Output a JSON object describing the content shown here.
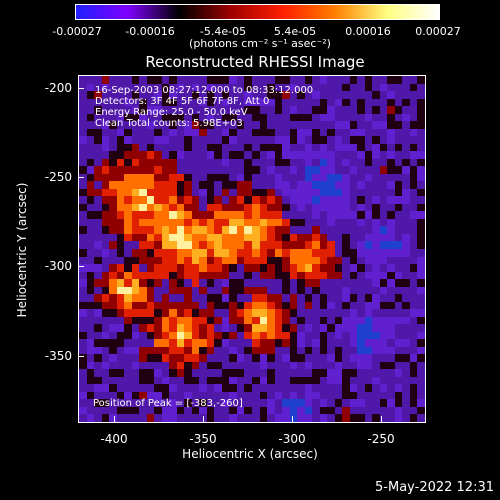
{
  "colorbar": {
    "ticks": [
      "-0.00027",
      "-0.00016",
      "-5.4e-05",
      "5.4e-05",
      "0.00016",
      "0.00027"
    ],
    "unit": "(photons cm⁻² s⁻¹ asec⁻²)",
    "colors": [
      "#2020ff",
      "#8000ff",
      "#000000",
      "#a00000",
      "#ff2000",
      "#ff8000",
      "#ffff80",
      "#ffffff"
    ]
  },
  "title": "Reconstructed RHESSI Image",
  "info": {
    "line1": "16-Sep-2003 08:27:12.000 to 08:33:12.000",
    "line2": "Detectors: 3F 4F 5F 6F 7F 8F, Att 0",
    "line3": "Energy Range: 25.0 - 50.0 keV",
    "line4": "Clean    Total counts: 5.98E+03",
    "peak": "Position of Peak = [-383,-260]"
  },
  "axes": {
    "xlabel": "Heliocentric X (arcsec)",
    "ylabel": "Heliocentric Y (arcsec)",
    "xticks": [
      "-400",
      "-350",
      "-300",
      "-250"
    ],
    "yticks": [
      "-200",
      "-250",
      "-300",
      "-350"
    ],
    "xrange": [
      -420,
      -225
    ],
    "yrange": [
      -385,
      -190
    ]
  },
  "datestamp": "5-May-2022 12:31"
}
